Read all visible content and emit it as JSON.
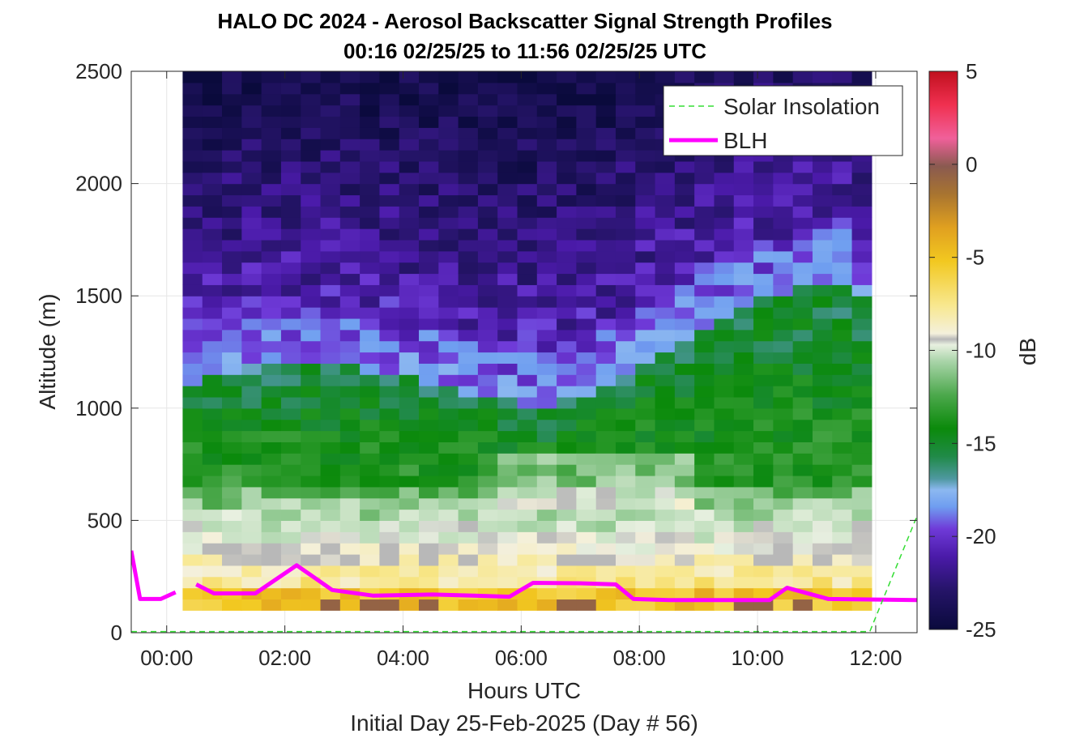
{
  "chart_data": {
    "type": "heatmap",
    "title": "HALO DC 2024 - Aerosol Backscatter Signal Strength Profiles",
    "subtitle": "00:16 02/25/25 to 11:56 02/25/25  UTC",
    "xlabel": "Hours UTC",
    "xlabel2": "Initial Day 25-Feb-2025 (Day # 56)",
    "ylabel": "Altitude (m)",
    "colorbar_label": "dB",
    "xlim": [
      -0.6,
      12.7
    ],
    "ylim": [
      0,
      2500
    ],
    "clim": [
      -25,
      5
    ],
    "x_ticks": [
      0,
      2,
      4,
      6,
      8,
      10,
      12
    ],
    "x_tick_labels": [
      "00:00",
      "02:00",
      "04:00",
      "06:00",
      "08:00",
      "10:00",
      "12:00"
    ],
    "y_ticks": [
      0,
      500,
      1000,
      1500,
      2000,
      2500
    ],
    "y_tick_labels": [
      "0",
      "500",
      "1000",
      "1500",
      "2000",
      "2500"
    ],
    "colorbar_ticks": [
      5,
      0,
      -5,
      -10,
      -15,
      -20,
      -25
    ],
    "colorbar_tick_labels": [
      "5",
      "0",
      "-5",
      "-10",
      "-15",
      "-20",
      "-25"
    ],
    "grid": true,
    "legend_position": "top-right",
    "legend": [
      {
        "label": "Solar Insolation",
        "color": "#33dd33",
        "style": "dashed"
      },
      {
        "label": "BLH",
        "color": "#ff00ff",
        "style": "solid"
      }
    ],
    "heatmap": {
      "x_start": 0.27,
      "x_end": 11.93,
      "n_columns": 35,
      "y_start": 100,
      "y_end": 2500,
      "bin_height": 50,
      "description_by_altitude": [
        {
          "from": 100,
          "to": 300,
          "dB_approx": -7,
          "note": "yellow/orange near surface"
        },
        {
          "from": 300,
          "to": 650,
          "dB_approx": -12,
          "note": "pale green to white"
        },
        {
          "from": 650,
          "to": 1100,
          "dB_approx": -16,
          "note": "green aerosol layer"
        },
        {
          "from": 1100,
          "to": 1350,
          "dB_approx": -20,
          "note": "blue/teal transition"
        },
        {
          "from": 1350,
          "to": 2500,
          "dB_approx": -23,
          "note": "purple/dark clean air"
        }
      ]
    },
    "series": [
      {
        "name": "BLH",
        "color": "#ff00ff",
        "x": [
          -0.6,
          -0.45,
          -0.1,
          0.15,
          null,
          0.5,
          0.8,
          1.5,
          2.2,
          2.8,
          3.5,
          4.5,
          5.2,
          5.8,
          6.2,
          7.0,
          7.6,
          7.9,
          8.5,
          9.5,
          10.2,
          10.5,
          11.2,
          12.7
        ],
        "y": [
          365,
          150,
          150,
          180,
          null,
          215,
          175,
          175,
          300,
          190,
          165,
          170,
          165,
          160,
          222,
          220,
          215,
          150,
          145,
          145,
          145,
          200,
          150,
          145
        ]
      },
      {
        "name": "Solar Insolation",
        "color": "#33dd33",
        "x": [
          -0.6,
          11.9,
          12.7
        ],
        "y": [
          5,
          5,
          520
        ]
      }
    ]
  }
}
